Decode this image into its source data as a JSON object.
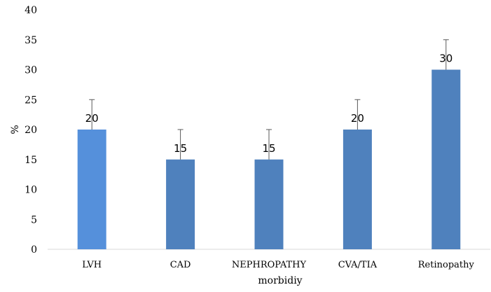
{
  "chart_data": {
    "type": "bar",
    "categories": [
      "LVH",
      "CAD",
      "NEPHROPATHY",
      "CVA/TIA",
      "Retinopathy"
    ],
    "values": [
      20,
      15,
      15,
      20,
      30
    ],
    "error_plus": [
      5,
      5,
      5,
      5,
      5
    ],
    "data_labels": [
      "20",
      "15",
      "15",
      "20",
      "30"
    ],
    "bar_colors": [
      "#5590DB",
      "#4F81BD",
      "#4F81BD",
      "#4F81BD",
      "#4F81BD"
    ],
    "ylim": [
      0,
      40
    ],
    "yticks": [
      0,
      5,
      10,
      15,
      20,
      25,
      30,
      35,
      40
    ],
    "ytick_labels": [
      "0",
      "5",
      "10",
      "15",
      "20",
      "25",
      "30",
      "35",
      "40"
    ],
    "xlabel": "morbidiy",
    "ylabel": "%",
    "grid": false,
    "legend": false
  }
}
